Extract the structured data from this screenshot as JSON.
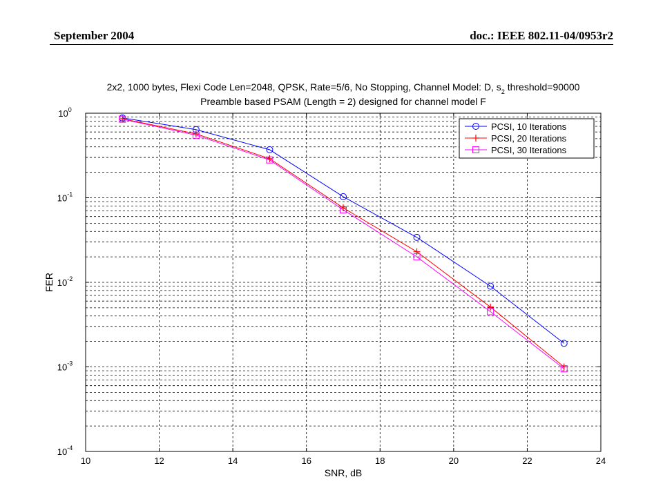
{
  "header": {
    "date": "September 2004",
    "doc": "doc.: IEEE 802.11-04/0953r2"
  },
  "chart_data": {
    "type": "line",
    "title_line1": "2x2, 1000 bytes, Flexi Code Len=2048, QPSK, Rate=5/6, No Stopping, Channel Model: D, s",
    "title_sub": "2",
    "title_line1_tail": " threshold=90000",
    "title_line2": "Preamble based PSAM (Length = 2) designed for channel model F",
    "xlabel": "SNR, dB",
    "ylabel": "FER",
    "xlim": [
      10,
      24
    ],
    "ylim": [
      0.0001,
      1
    ],
    "y_scale": "log",
    "grid": true,
    "legend_position": "top-right",
    "x_ticks": [
      "10",
      "12",
      "14",
      "16",
      "18",
      "20",
      "22",
      "24"
    ],
    "y_ticks": [
      {
        "base": "10",
        "exp": "0"
      },
      {
        "base": "10",
        "exp": "-1"
      },
      {
        "base": "10",
        "exp": "-2"
      },
      {
        "base": "10",
        "exp": "-3"
      },
      {
        "base": "10",
        "exp": "-4"
      }
    ],
    "x": [
      11,
      13,
      15,
      17,
      19,
      21,
      23
    ],
    "series": [
      {
        "name": "PCSI, 10 Iterations",
        "color": "#0000ff",
        "marker": "circle",
        "values": [
          0.88,
          0.64,
          0.37,
          0.103,
          0.034,
          0.009,
          0.0019
        ]
      },
      {
        "name": "PCSI, 20 Iterations",
        "color": "#ff0000",
        "marker": "plus",
        "values": [
          0.86,
          0.57,
          0.29,
          0.076,
          0.023,
          0.0051,
          0.001
        ]
      },
      {
        "name": "PCSI, 30 Iterations",
        "color": "#ff00ff",
        "marker": "square",
        "values": [
          0.85,
          0.55,
          0.28,
          0.072,
          0.02,
          0.0045,
          0.00095
        ]
      }
    ]
  }
}
